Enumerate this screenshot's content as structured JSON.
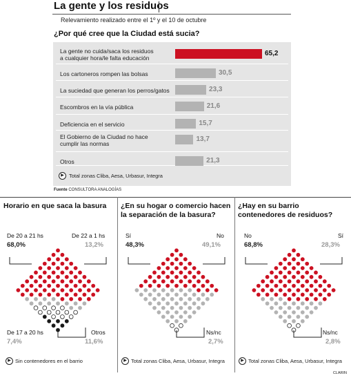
{
  "header": {
    "title": "La gente y los residuos",
    "subtitle": "Relevamiento realizado entre el 1º y el 10 de octubre",
    "question": "¿Por qué cree que la Ciudad está sucia?"
  },
  "bar_chart_footnote": "Total zonas Cliba, Aesa, Urbasur, Integra",
  "source": {
    "label": "Fuente",
    "name": "CONSULTORA ANALOGÍAS"
  },
  "colors": {
    "red": "#cc1122",
    "gray": "#b3b3b3",
    "black": "#1a1a1a",
    "white": "#ffffff",
    "panel": "#e5e5e5"
  },
  "chart_data": [
    {
      "type": "bar",
      "title": "¿Por qué cree que la Ciudad está sucia?",
      "categories": [
        [
          "La gente no cuida/saca los residuos",
          "a cualquier hora/le falta educación"
        ],
        [
          "Los cartoneros rompen las bolsas"
        ],
        [
          "La suciedad que generan los perros/gatos"
        ],
        [
          "Escombros en la vía pública"
        ],
        [
          "Deficiencia en el servicio"
        ],
        [
          "El Gobierno de la Ciudad no hace",
          "cumplir las normas"
        ],
        [
          "Otros"
        ]
      ],
      "values": [
        65.2,
        30.5,
        23.3,
        21.6,
        15.7,
        13.7,
        21.3
      ],
      "value_labels": [
        "65,2",
        "30,5",
        "23,3",
        "21,6",
        "15,7",
        "13,7",
        "21,3"
      ],
      "xlim": [
        0,
        65.2
      ]
    },
    {
      "type": "waffle",
      "title": "Horario en que saca la basura",
      "series": [
        {
          "name": "De 20 a 21 hs",
          "value": 68.0,
          "label": "68,0%",
          "color": "red"
        },
        {
          "name": "De 22 a 1 hs",
          "value": 13.2,
          "label": "13,2%",
          "color": "gray"
        },
        {
          "name": "Otros",
          "value": 11.6,
          "label": "11,6%",
          "color": "white"
        },
        {
          "name": "De 17 a 20 hs",
          "value": 7.4,
          "label": "7,4%",
          "color": "black"
        }
      ],
      "footnote": "Sin contenedores en el barrio"
    },
    {
      "type": "waffle",
      "title": "¿En su hogar o comercio hacen la separación de la basura?",
      "series": [
        {
          "name": "Sí",
          "value": 48.3,
          "label": "48,3%",
          "color": "red"
        },
        {
          "name": "No",
          "value": 49.1,
          "label": "49,1%",
          "color": "gray"
        },
        {
          "name": "Ns/nc",
          "value": 2.7,
          "label": "2,7%",
          "color": "white"
        }
      ],
      "footnote": "Total zonas Cliba, Aesa, Urbasur, Integra"
    },
    {
      "type": "waffle",
      "title": "¿Hay en su barrio contenedores de residuos?",
      "series": [
        {
          "name": "No",
          "value": 68.8,
          "label": "68,8%",
          "color": "red"
        },
        {
          "name": "Sí",
          "value": 28.3,
          "label": "28,3%",
          "color": "gray"
        },
        {
          "name": "Ns/nc",
          "value": 2.8,
          "label": "2,8%",
          "color": "white"
        }
      ],
      "footnote": "Total zonas Cliba, Aesa, Urbasur, Integra"
    }
  ],
  "credit": "CLARIN"
}
